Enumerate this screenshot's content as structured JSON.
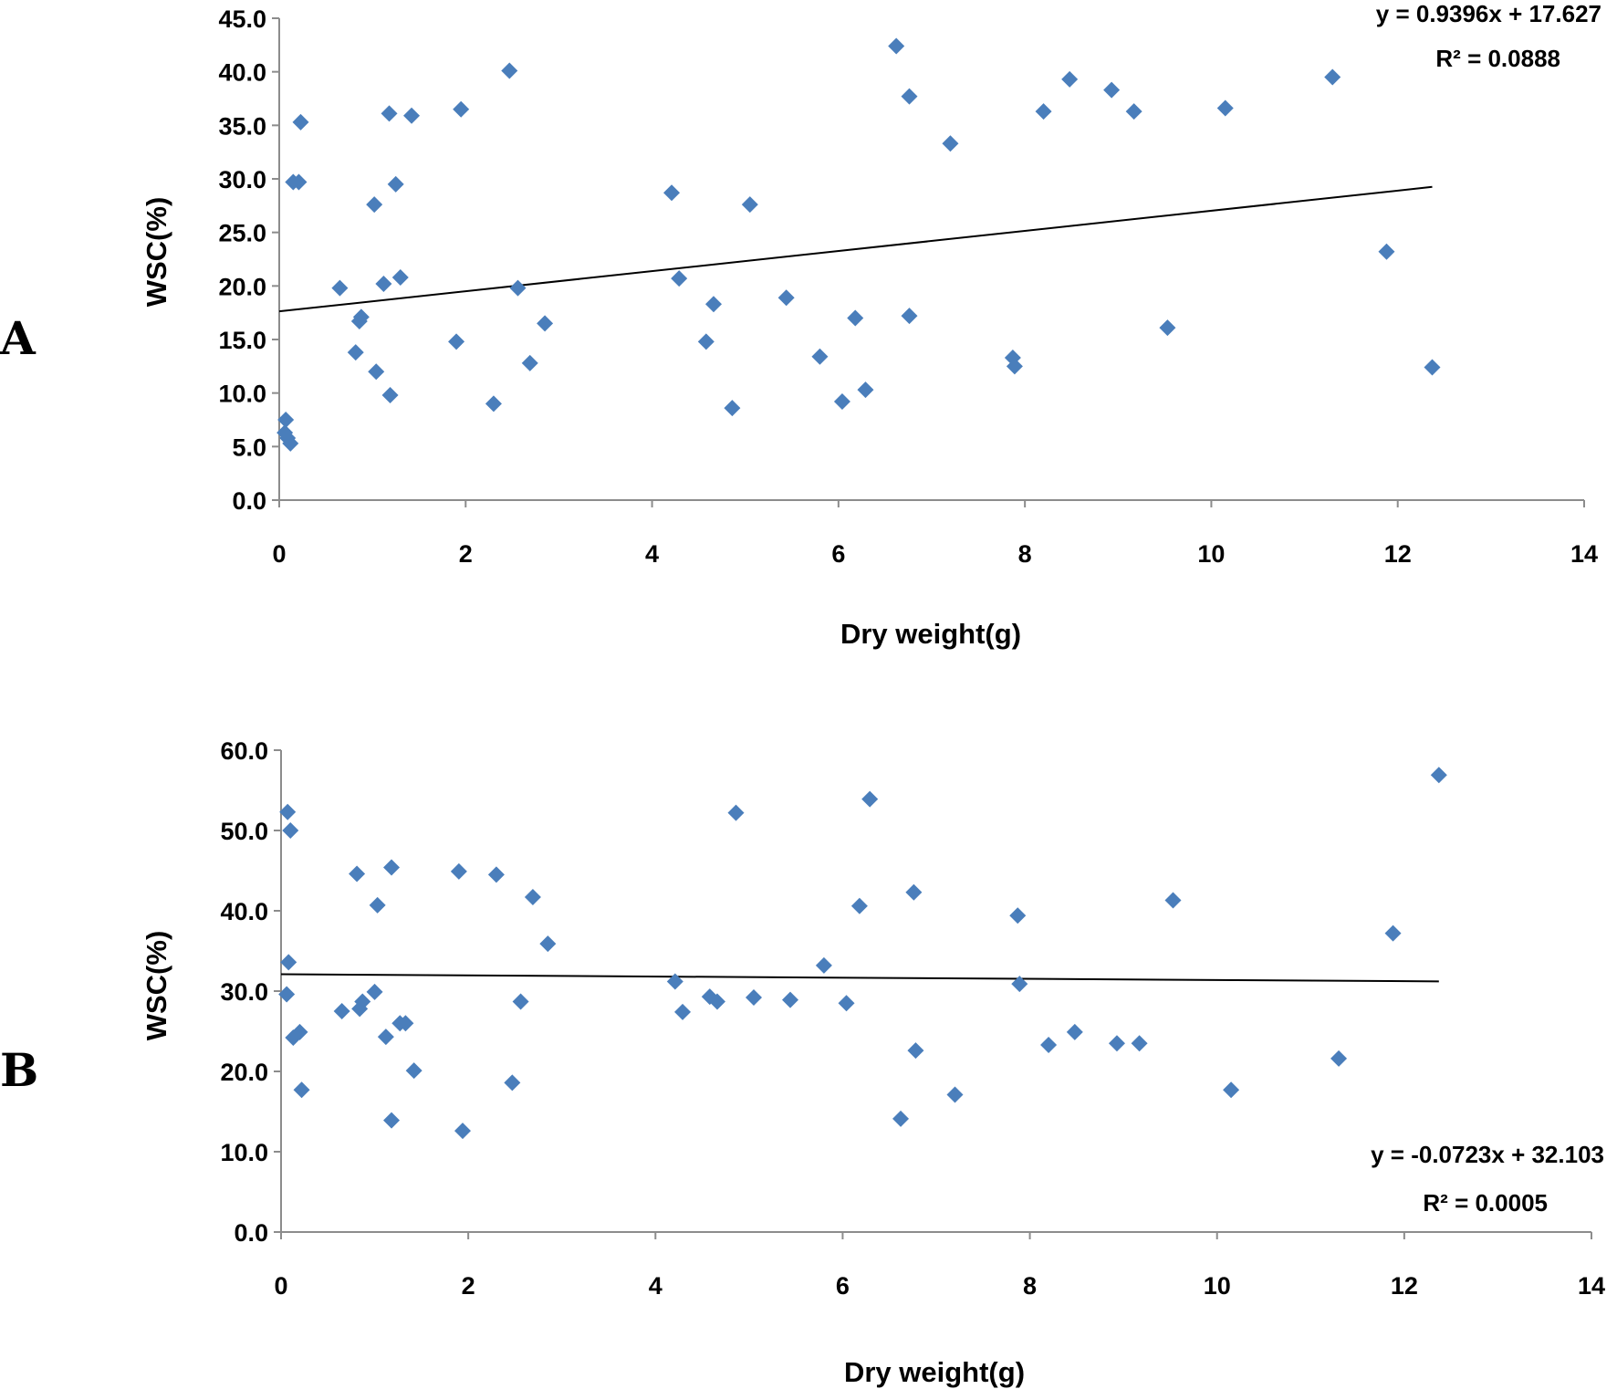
{
  "colors": {
    "marker": "#4a7ebb",
    "trend": "#000000",
    "axis": "#8c8c8c"
  },
  "chart_data": [
    {
      "type": "scatter",
      "panel_label": "A",
      "xlabel": "Dry weight(g)",
      "ylabel": "WSC(%)",
      "xlim": [
        0,
        14
      ],
      "ylim": [
        0,
        45
      ],
      "x_ticks": [
        0,
        2,
        4,
        6,
        8,
        10,
        12,
        14
      ],
      "x_tick_labels": [
        "0",
        "2",
        "4",
        "6",
        "8",
        "10",
        "12",
        "14"
      ],
      "y_ticks": [
        0,
        5,
        10,
        15,
        20,
        25,
        30,
        35,
        40,
        45
      ],
      "y_tick_labels": [
        "0.0",
        "5.0",
        "10.0",
        "15.0",
        "20.0",
        "25.0",
        "30.0",
        "35.0",
        "40.0",
        "45.0"
      ],
      "trendline": {
        "slope": 0.9396,
        "intercept": 17.627,
        "x_range": [
          0,
          12.37
        ]
      },
      "equation": "y = 0.9396x + 17.627",
      "r_squared": "R² = 0.0888",
      "points": [
        [
          0.07,
          7.5
        ],
        [
          0.06,
          6.3
        ],
        [
          0.09,
          5.8
        ],
        [
          0.12,
          5.3
        ],
        [
          0.15,
          29.7
        ],
        [
          0.21,
          29.7
        ],
        [
          0.23,
          35.3
        ],
        [
          0.65,
          19.8
        ],
        [
          0.82,
          13.8
        ],
        [
          0.86,
          16.7
        ],
        [
          0.88,
          17.1
        ],
        [
          1.02,
          27.6
        ],
        [
          1.04,
          12.0
        ],
        [
          1.12,
          20.2
        ],
        [
          1.18,
          36.1
        ],
        [
          1.19,
          9.8
        ],
        [
          1.25,
          29.5
        ],
        [
          1.3,
          20.8
        ],
        [
          1.42,
          35.9
        ],
        [
          1.9,
          14.8
        ],
        [
          1.95,
          36.5
        ],
        [
          2.3,
          9.0
        ],
        [
          2.47,
          40.1
        ],
        [
          2.56,
          19.8
        ],
        [
          2.69,
          12.8
        ],
        [
          2.85,
          16.5
        ],
        [
          4.21,
          28.7
        ],
        [
          4.29,
          20.7
        ],
        [
          4.58,
          14.8
        ],
        [
          4.66,
          18.3
        ],
        [
          4.86,
          8.6
        ],
        [
          5.05,
          27.6
        ],
        [
          5.44,
          18.9
        ],
        [
          5.8,
          13.4
        ],
        [
          6.04,
          9.2
        ],
        [
          6.18,
          17.0
        ],
        [
          6.29,
          10.3
        ],
        [
          6.62,
          42.4
        ],
        [
          6.76,
          17.2
        ],
        [
          6.76,
          37.7
        ],
        [
          7.2,
          33.3
        ],
        [
          7.87,
          13.3
        ],
        [
          7.89,
          12.5
        ],
        [
          8.2,
          36.3
        ],
        [
          8.48,
          39.3
        ],
        [
          8.93,
          38.3
        ],
        [
          9.17,
          36.3
        ],
        [
          9.53,
          16.1
        ],
        [
          10.15,
          36.6
        ],
        [
          11.3,
          39.5
        ],
        [
          11.88,
          23.2
        ],
        [
          12.37,
          12.4
        ]
      ]
    },
    {
      "type": "scatter",
      "panel_label": "B",
      "xlabel": "Dry weight(g)",
      "ylabel": "WSC(%)",
      "xlim": [
        0,
        14
      ],
      "ylim": [
        0,
        60
      ],
      "x_ticks": [
        0,
        2,
        4,
        6,
        8,
        10,
        12,
        14
      ],
      "x_tick_labels": [
        "0",
        "2",
        "4",
        "6",
        "8",
        "10",
        "12",
        "14"
      ],
      "y_ticks": [
        0,
        10,
        20,
        30,
        40,
        50,
        60
      ],
      "y_tick_labels": [
        "0.0",
        "10.0",
        "20.0",
        "30.0",
        "40.0",
        "50.0",
        "60.0"
      ],
      "trendline": {
        "slope": -0.0723,
        "intercept": 32.103,
        "x_range": [
          0,
          12.37
        ]
      },
      "equation": "y = -0.0723x + 32.103",
      "r_squared": "R² = 0.0005",
      "points": [
        [
          0.07,
          52.3
        ],
        [
          0.1,
          50.0
        ],
        [
          0.08,
          33.6
        ],
        [
          0.06,
          29.6
        ],
        [
          0.13,
          24.2
        ],
        [
          0.2,
          24.9
        ],
        [
          0.22,
          17.7
        ],
        [
          0.65,
          27.5
        ],
        [
          0.81,
          44.6
        ],
        [
          0.84,
          27.8
        ],
        [
          0.87,
          28.7
        ],
        [
          1.0,
          29.9
        ],
        [
          1.03,
          40.7
        ],
        [
          1.12,
          24.3
        ],
        [
          1.18,
          45.4
        ],
        [
          1.18,
          13.9
        ],
        [
          1.27,
          26.0
        ],
        [
          1.33,
          26.0
        ],
        [
          1.42,
          20.1
        ],
        [
          1.9,
          44.9
        ],
        [
          1.94,
          12.6
        ],
        [
          2.3,
          44.5
        ],
        [
          2.47,
          18.6
        ],
        [
          2.56,
          28.7
        ],
        [
          2.69,
          41.7
        ],
        [
          2.85,
          35.9
        ],
        [
          4.21,
          31.2
        ],
        [
          4.29,
          27.4
        ],
        [
          4.58,
          29.3
        ],
        [
          4.66,
          28.7
        ],
        [
          4.86,
          52.2
        ],
        [
          5.05,
          29.2
        ],
        [
          5.44,
          28.9
        ],
        [
          5.8,
          33.2
        ],
        [
          6.04,
          28.5
        ],
        [
          6.18,
          40.6
        ],
        [
          6.29,
          53.9
        ],
        [
          6.62,
          14.1
        ],
        [
          6.76,
          42.3
        ],
        [
          6.78,
          22.6
        ],
        [
          7.2,
          17.1
        ],
        [
          7.87,
          39.4
        ],
        [
          7.89,
          30.9
        ],
        [
          8.2,
          23.3
        ],
        [
          8.48,
          24.9
        ],
        [
          8.93,
          23.5
        ],
        [
          9.17,
          23.5
        ],
        [
          9.53,
          41.3
        ],
        [
          10.15,
          17.7
        ],
        [
          11.3,
          21.6
        ],
        [
          11.88,
          37.2
        ],
        [
          12.37,
          56.9
        ]
      ]
    }
  ]
}
